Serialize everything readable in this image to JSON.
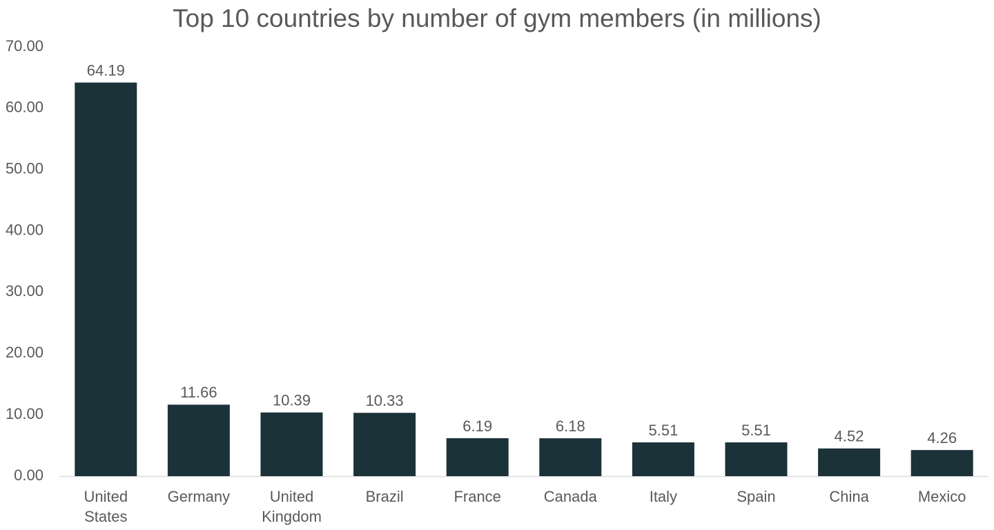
{
  "chart_data": {
    "type": "bar",
    "title": "Top 10 countries by number of gym members (in millions)",
    "categories": [
      "United States",
      "Germany",
      "United Kingdom",
      "Brazil",
      "France",
      "Canada",
      "Italy",
      "Spain",
      "China",
      "Mexico"
    ],
    "values": [
      64.19,
      11.66,
      10.39,
      10.33,
      6.19,
      6.18,
      5.51,
      5.51,
      4.52,
      4.26
    ],
    "color": "#1c3239",
    "ylim": [
      0,
      70
    ],
    "yticks": [
      {
        "value": 0,
        "label": "0.00"
      },
      {
        "value": 10,
        "label": "10.00"
      },
      {
        "value": 20,
        "label": "20.00"
      },
      {
        "value": 30,
        "label": "30.00"
      },
      {
        "value": 40,
        "label": "40.00"
      },
      {
        "value": 50,
        "label": "50.00"
      },
      {
        "value": 60,
        "label": "60.00"
      },
      {
        "value": 70,
        "label": "70.00"
      }
    ],
    "grid": false
  }
}
